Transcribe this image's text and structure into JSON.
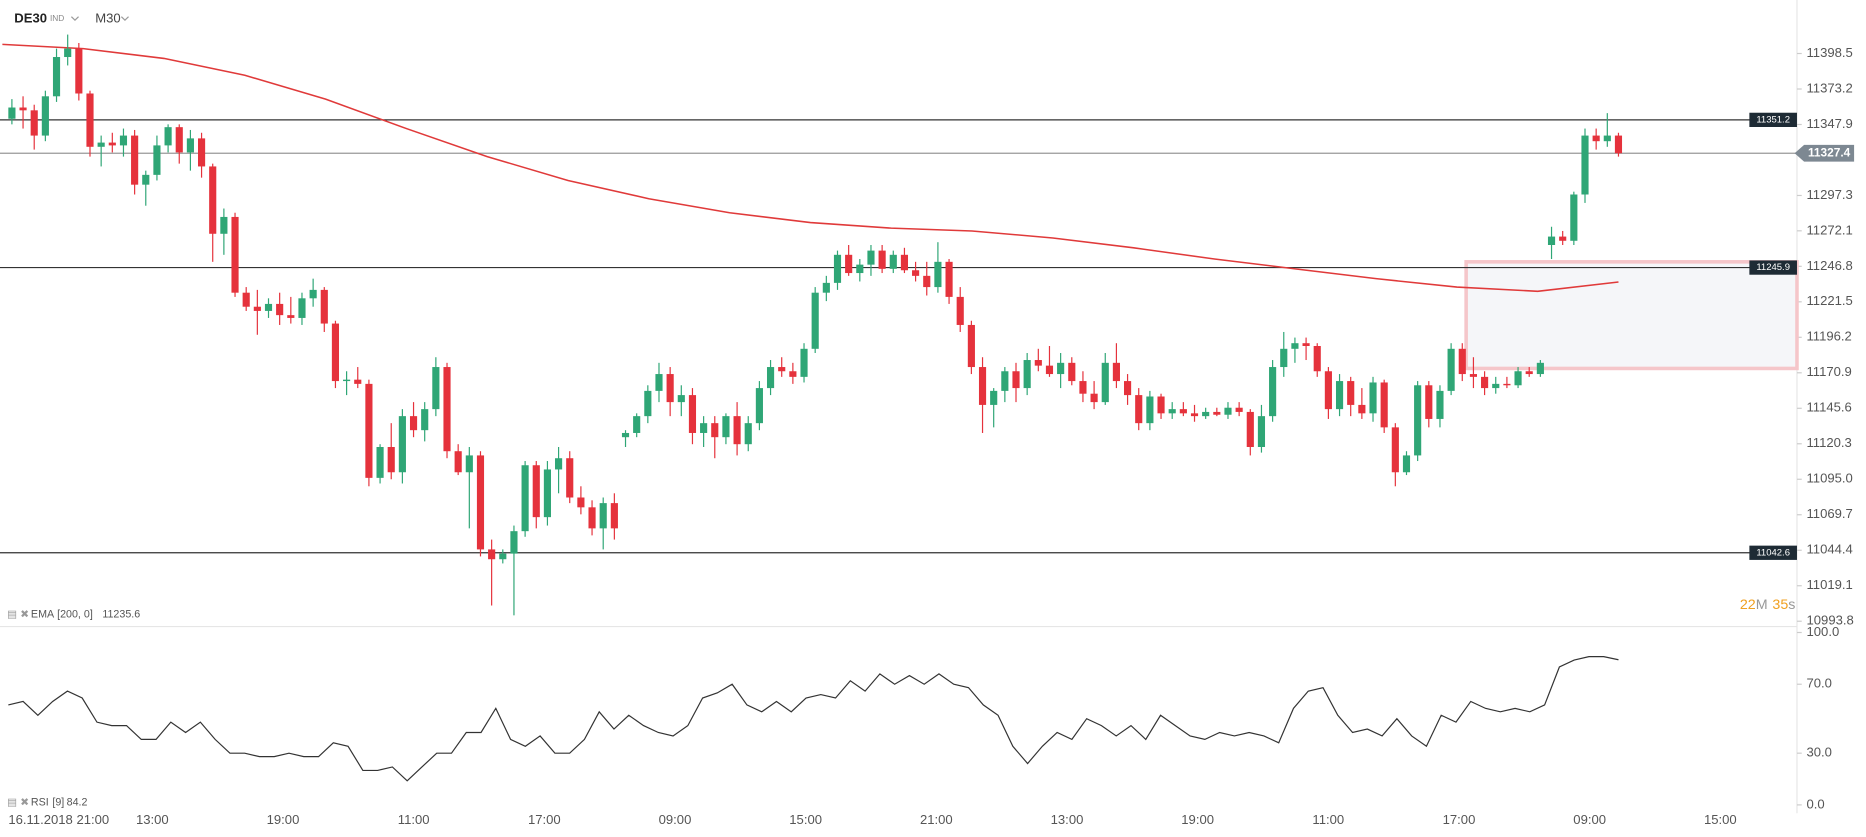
{
  "chart_data": {
    "type": "candlestick",
    "symbol": "DE30",
    "instrument_type": "IND",
    "interval": "M30",
    "ylim": [
      10990,
      11418
    ],
    "yticks": [
      11398.5,
      11373.2,
      11347.9,
      11297.3,
      11272.1,
      11246.8,
      11221.5,
      11196.2,
      11170.9,
      11145.6,
      11120.3,
      {
        "value": 11095,
        "label": "11095.0"
      },
      11069.7,
      11044.4,
      11019.1,
      10993.8
    ],
    "up_color": "#2fa676",
    "down_color": "#e5323c",
    "levels": [
      11351.2,
      11245.9,
      11042.6
    ],
    "zone": [
      11250,
      11174
    ],
    "x_labels": [
      "16.11.2018 21:00",
      "13:00",
      "19:00",
      "11:00",
      "17:00",
      "09:00",
      "15:00",
      "21:00",
      "13:00",
      "19:00",
      "11:00",
      "17:00",
      "09:00",
      "15:00"
    ],
    "countdown": {
      "minutes": "22",
      "minutes_unit": "M",
      "seconds": "35",
      "seconds_unit": "s"
    },
    "candles": [
      [
        11352,
        11366,
        11348,
        11360
      ],
      [
        11360,
        11368,
        11345,
        11358
      ],
      [
        11358,
        11362,
        11330,
        11340
      ],
      [
        11340,
        11372,
        11336,
        11368
      ],
      [
        11368,
        11402,
        11364,
        11396
      ],
      [
        11396,
        11412,
        11390,
        11402
      ],
      [
        11402,
        11406,
        11365,
        11370
      ],
      [
        11370,
        11372,
        11325,
        11332
      ],
      [
        11332,
        11340,
        11318,
        11335
      ],
      [
        11335,
        11342,
        11328,
        11333
      ],
      [
        11333,
        11345,
        11325,
        11340
      ],
      [
        11340,
        11344,
        11298,
        11305
      ],
      [
        11305,
        11315,
        11290,
        11312
      ],
      [
        11312,
        11340,
        11308,
        11333
      ],
      [
        11333,
        11348,
        11328,
        11346
      ],
      [
        11346,
        11348,
        11320,
        11328
      ],
      [
        11328,
        11344,
        11315,
        11338
      ],
      [
        11338,
        11342,
        11310,
        11318
      ],
      [
        11318,
        11320,
        11250,
        11270
      ],
      [
        11270,
        11288,
        11255,
        11282
      ],
      [
        11282,
        11285,
        11225,
        11228
      ],
      [
        11228,
        11232,
        11215,
        11218
      ],
      [
        11218,
        11230,
        11198,
        11215
      ],
      [
        11215,
        11224,
        11210,
        11220
      ],
      [
        11220,
        11228,
        11205,
        11212
      ],
      [
        11212,
        11225,
        11206,
        11210
      ],
      [
        11210,
        11228,
        11205,
        11224
      ],
      [
        11224,
        11238,
        11218,
        11230
      ],
      [
        11230,
        11232,
        11200,
        11206
      ],
      [
        11206,
        11208,
        11160,
        11165
      ],
      [
        11165,
        11172,
        11155,
        11166
      ],
      [
        11166,
        11175,
        11160,
        11163
      ],
      [
        11163,
        11166,
        11090,
        11096
      ],
      [
        11096,
        11120,
        11092,
        11118
      ],
      [
        11118,
        11135,
        11095,
        11100
      ],
      [
        11100,
        11145,
        11092,
        11140
      ],
      [
        11140,
        11150,
        11125,
        11130
      ],
      [
        11130,
        11150,
        11122,
        11145
      ],
      [
        11145,
        11182,
        11140,
        11175
      ],
      [
        11175,
        11178,
        11110,
        11115
      ],
      [
        11115,
        11120,
        11098,
        11100
      ],
      [
        11100,
        11118,
        11060,
        11112
      ],
      [
        11112,
        11115,
        11040,
        11045
      ],
      [
        11045,
        11052,
        11005,
        11038
      ],
      [
        11038,
        11045,
        11035,
        11042
      ],
      [
        11042,
        11062,
        10998,
        11058
      ],
      [
        11058,
        11108,
        11054,
        11105
      ],
      [
        11105,
        11108,
        11060,
        11068
      ],
      [
        11068,
        11108,
        11062,
        11102
      ],
      [
        11102,
        11118,
        11085,
        11110
      ],
      [
        11110,
        11115,
        11078,
        11082
      ],
      [
        11082,
        11090,
        11070,
        11075
      ],
      [
        11075,
        11080,
        11055,
        11060
      ],
      [
        11060,
        11082,
        11045,
        11078
      ],
      [
        11078,
        11085,
        11052,
        11060
      ],
      [
        11125,
        11130,
        11118,
        11128
      ],
      [
        11128,
        11142,
        11125,
        11140
      ],
      [
        11140,
        11162,
        11135,
        11158
      ],
      [
        11158,
        11178,
        11150,
        11170
      ],
      [
        11170,
        11175,
        11140,
        11150
      ],
      [
        11150,
        11162,
        11140,
        11155
      ],
      [
        11155,
        11160,
        11120,
        11128
      ],
      [
        11128,
        11140,
        11118,
        11135
      ],
      [
        11135,
        11140,
        11110,
        11125
      ],
      [
        11125,
        11142,
        11120,
        11140
      ],
      [
        11140,
        11150,
        11112,
        11120
      ],
      [
        11120,
        11140,
        11115,
        11135
      ],
      [
        11135,
        11165,
        11130,
        11160
      ],
      [
        11160,
        11180,
        11155,
        11175
      ],
      [
        11175,
        11182,
        11168,
        11172
      ],
      [
        11172,
        11178,
        11163,
        11168
      ],
      [
        11168,
        11192,
        11164,
        11188
      ],
      [
        11188,
        11232,
        11185,
        11228
      ],
      [
        11228,
        11240,
        11222,
        11235
      ],
      [
        11235,
        11258,
        11230,
        11255
      ],
      [
        11255,
        11262,
        11240,
        11242
      ],
      [
        11242,
        11252,
        11236,
        11248
      ],
      [
        11248,
        11262,
        11240,
        11258
      ],
      [
        11258,
        11262,
        11242,
        11245
      ],
      [
        11245,
        11258,
        11242,
        11255
      ],
      [
        11255,
        11260,
        11242,
        11244
      ],
      [
        11244,
        11250,
        11236,
        11240
      ],
      [
        11240,
        11250,
        11226,
        11232
      ],
      [
        11232,
        11264,
        11228,
        11250
      ],
      [
        11250,
        11252,
        11220,
        11225
      ],
      [
        11225,
        11232,
        11200,
        11205
      ],
      [
        11205,
        11208,
        11170,
        11175
      ],
      [
        11175,
        11182,
        11128,
        11148
      ],
      [
        11148,
        11160,
        11132,
        11158
      ],
      [
        11158,
        11175,
        11150,
        11172
      ],
      [
        11172,
        11178,
        11150,
        11160
      ],
      [
        11160,
        11185,
        11155,
        11180
      ],
      [
        11180,
        11188,
        11172,
        11176
      ],
      [
        11176,
        11190,
        11168,
        11170
      ],
      [
        11170,
        11185,
        11160,
        11178
      ],
      [
        11178,
        11182,
        11162,
        11165
      ],
      [
        11165,
        11172,
        11150,
        11156
      ],
      [
        11156,
        11165,
        11145,
        11150
      ],
      [
        11150,
        11185,
        11148,
        11178
      ],
      [
        11178,
        11192,
        11160,
        11165
      ],
      [
        11165,
        11170,
        11148,
        11155
      ],
      [
        11155,
        11160,
        11130,
        11135
      ],
      [
        11135,
        11158,
        11130,
        11154
      ],
      [
        11154,
        11156,
        11138,
        11142
      ],
      [
        11142,
        11150,
        11138,
        11145
      ],
      [
        11145,
        11150,
        11140,
        11142
      ],
      [
        11142,
        11148,
        11136,
        11140
      ],
      [
        11140,
        11146,
        11138,
        11143
      ],
      [
        11143,
        11146,
        11140,
        11141
      ],
      [
        11141,
        11150,
        11138,
        11146
      ],
      [
        11146,
        11150,
        11140,
        11143
      ],
      [
        11143,
        11145,
        11112,
        11118
      ],
      [
        11118,
        11148,
        11114,
        11140
      ],
      [
        11140,
        11180,
        11136,
        11175
      ],
      [
        11175,
        11200,
        11168,
        11188
      ],
      [
        11188,
        11196,
        11178,
        11192
      ],
      [
        11192,
        11196,
        11180,
        11190
      ],
      [
        11190,
        11192,
        11168,
        11172
      ],
      [
        11172,
        11175,
        11138,
        11145
      ],
      [
        11145,
        11170,
        11140,
        11165
      ],
      [
        11165,
        11168,
        11140,
        11148
      ],
      [
        11148,
        11160,
        11138,
        11142
      ],
      [
        11142,
        11168,
        11136,
        11164
      ],
      [
        11164,
        11166,
        11128,
        11132
      ],
      [
        11132,
        11135,
        11090,
        11100
      ],
      [
        11100,
        11115,
        11098,
        11112
      ],
      [
        11112,
        11165,
        11108,
        11162
      ],
      [
        11162,
        11165,
        11132,
        11138
      ],
      [
        11138,
        11162,
        11132,
        11158
      ],
      [
        11158,
        11192,
        11155,
        11188
      ],
      [
        11188,
        11192,
        11165,
        11170
      ],
      [
        11170,
        11182,
        11160,
        11168
      ],
      [
        11168,
        11172,
        11155,
        11160
      ],
      [
        11160,
        11168,
        11156,
        11163
      ],
      [
        11163,
        11168,
        11160,
        11162
      ],
      [
        11162,
        11175,
        11160,
        11172
      ],
      [
        11172,
        11175,
        11168,
        11170
      ],
      [
        11170,
        11180,
        11168,
        11178
      ],
      [
        11262,
        11275,
        11252,
        11268
      ],
      [
        11268,
        11272,
        11262,
        11265
      ],
      [
        11265,
        11300,
        11262,
        11298
      ],
      [
        11298,
        11345,
        11292,
        11340
      ],
      [
        11340,
        11345,
        11330,
        11336
      ],
      [
        11336,
        11356,
        11332,
        11340
      ],
      [
        11340,
        11342,
        11325,
        11327.4
      ]
    ],
    "ema": {
      "name": "EMA",
      "params": "[200, 0]",
      "color": "#e03a3a",
      "values": [
        11405,
        11402,
        11395,
        11383,
        11366,
        11345,
        11325,
        11308,
        11295,
        11285,
        11278,
        11274,
        11272,
        11267,
        11260,
        11252,
        11245,
        11238,
        11232,
        11229,
        11235.6
      ]
    },
    "rsi": {
      "name": "RSI",
      "params": "[9]",
      "color": "#333333",
      "ylim": [
        0,
        100
      ],
      "yticks": [
        {
          "value": 100,
          "label": "100.0"
        },
        {
          "value": 70,
          "label": "70.0"
        },
        {
          "value": 30,
          "label": "30.0"
        },
        {
          "value": 0,
          "label": "0.0"
        }
      ],
      "values": [
        58,
        60,
        52,
        60,
        66,
        62,
        48,
        46,
        46,
        38,
        38,
        48,
        42,
        48,
        38,
        30,
        30,
        28,
        28,
        30,
        28,
        28,
        36,
        34,
        20,
        20,
        22,
        14,
        22,
        30,
        30,
        42,
        42,
        56,
        38,
        34,
        40,
        30,
        30,
        38,
        54,
        44,
        52,
        46,
        42,
        40,
        46,
        62,
        65,
        70,
        58,
        54,
        60,
        54,
        62,
        64,
        62,
        72,
        66,
        76,
        70,
        75,
        70,
        76,
        70,
        68,
        58,
        52,
        34,
        24,
        34,
        42,
        38,
        50,
        46,
        40,
        46,
        38,
        52,
        46,
        40,
        38,
        42,
        40,
        42,
        40,
        36,
        56,
        66,
        68,
        52,
        42,
        44,
        40,
        50,
        40,
        34,
        52,
        48,
        60,
        56,
        54,
        56,
        54,
        58,
        80,
        84,
        86,
        86,
        84.2
      ]
    }
  }
}
